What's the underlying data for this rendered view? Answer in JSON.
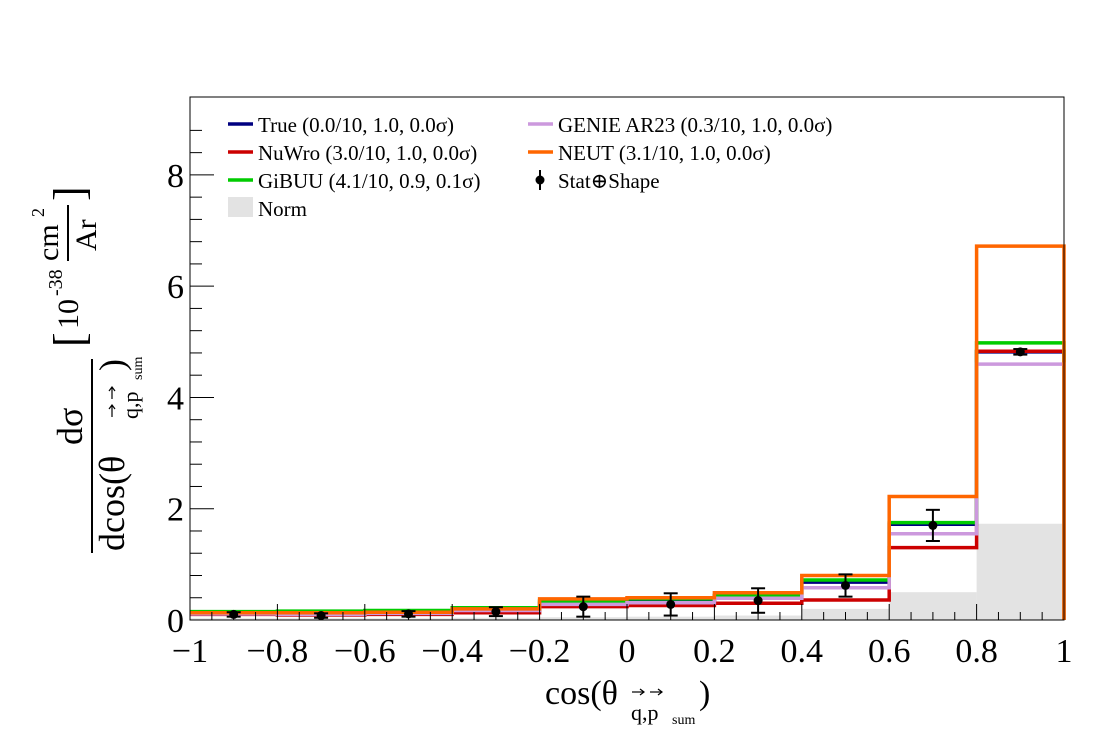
{
  "chart_data": {
    "type": "histogram",
    "x_axis": {
      "label": "cos(θ",
      "label_sub": "q,p",
      "label_subsub": "sum",
      "label_close": ")",
      "range": [
        -1,
        1
      ],
      "ticks": [
        "−1",
        "−0.8",
        "−0.6",
        "−0.4",
        "−0.2",
        "0",
        "0.2",
        "0.4",
        "0.6",
        "0.8",
        "1"
      ]
    },
    "y_axis": {
      "numerator": "dσ",
      "denominator": "dcos(θ",
      "denominator_sub": "q,p",
      "denominator_subsub": "sum",
      "denominator_close": ")",
      "unit_prefix": "10",
      "unit_exp": "-38",
      "unit_num": "cm",
      "unit_num_exp": "2",
      "unit_den": "Ar",
      "range": [
        0,
        9.4
      ],
      "ticks": [
        "0",
        "2",
        "4",
        "6",
        "8"
      ]
    },
    "bin_edges": [
      -1,
      -0.8,
      -0.6,
      -0.4,
      -0.2,
      0,
      0.2,
      0.4,
      0.6,
      0.8,
      1
    ],
    "norm_band": {
      "name": "Norm",
      "color": "#e3e3e3",
      "values": [
        0.03,
        0.03,
        0.03,
        0.04,
        0.05,
        0.06,
        0.08,
        0.2,
        0.5,
        1.73
      ]
    },
    "series": [
      {
        "name": "True (0.0/10, 1.0, 0.0σ)",
        "color": "#000080",
        "values": [
          0.12,
          0.11,
          0.13,
          0.18,
          0.3,
          0.33,
          0.43,
          0.68,
          1.72,
          4.82
        ]
      },
      {
        "name": "NuWro (3.0/10, 1.0, 0.0σ)",
        "color": "#cc0000",
        "values": [
          0.1,
          0.09,
          0.1,
          0.13,
          0.24,
          0.26,
          0.3,
          0.36,
          1.3,
          4.83
        ]
      },
      {
        "name": "GiBUU (4.1/10, 0.9, 0.1σ)",
        "color": "#00cc00",
        "values": [
          0.15,
          0.16,
          0.17,
          0.22,
          0.34,
          0.38,
          0.44,
          0.72,
          1.75,
          4.98
        ]
      },
      {
        "name": "GENIE AR23 (0.3/10, 1.0, 0.0σ)",
        "color": "#cc99dd",
        "values": [
          0.11,
          0.1,
          0.12,
          0.17,
          0.28,
          0.31,
          0.39,
          0.58,
          1.55,
          4.6
        ]
      },
      {
        "name": "NEUT (3.1/10, 1.0, 0.0σ)",
        "color": "#ff6600",
        "values": [
          0.13,
          0.13,
          0.14,
          0.2,
          0.38,
          0.4,
          0.49,
          0.8,
          2.22,
          6.72
        ]
      }
    ],
    "data": {
      "name": "Stat⊕Shape",
      "x": [
        -0.9,
        -0.7,
        -0.5,
        -0.3,
        -0.1,
        0.1,
        0.3,
        0.5,
        0.7,
        0.9
      ],
      "y": [
        0.1,
        0.08,
        0.11,
        0.15,
        0.24,
        0.28,
        0.35,
        0.62,
        1.7,
        4.82
      ],
      "err": [
        0.04,
        0.04,
        0.05,
        0.08,
        0.18,
        0.2,
        0.22,
        0.2,
        0.28,
        0.05
      ]
    },
    "legend": {
      "placement": "top-left",
      "columns": [
        [
          "True (0.0/10, 1.0, 0.0σ)",
          "NuWro (3.0/10, 1.0, 0.0σ)",
          "GiBUU (4.1/10, 0.9, 0.1σ)",
          "Norm"
        ],
        [
          "GENIE AR23 (0.3/10, 1.0, 0.0σ)",
          "NEUT (3.1/10, 1.0, 0.0σ)",
          "Stat⊕Shape"
        ]
      ]
    }
  }
}
